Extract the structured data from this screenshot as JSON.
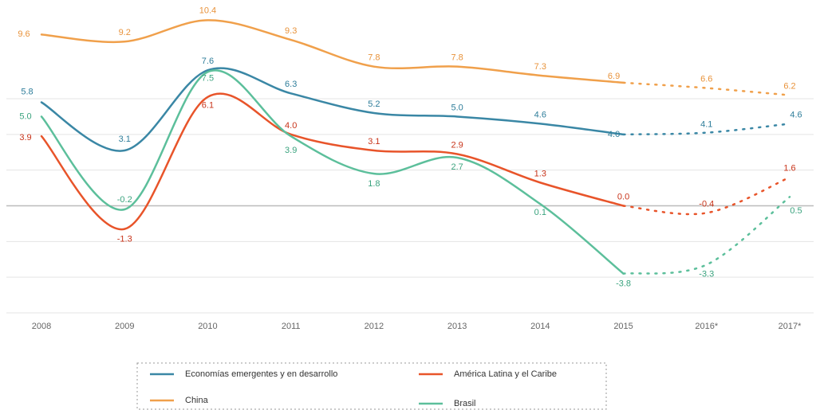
{
  "chart_data": {
    "type": "line",
    "categories": [
      "2008",
      "2009",
      "2010",
      "2011",
      "2012",
      "2013",
      "2014",
      "2015",
      "2016*",
      "2017*"
    ],
    "series": [
      {
        "name": "China",
        "color": "#f0a04b",
        "label_color": "#e8923a",
        "values": [
          9.6,
          9.2,
          10.4,
          9.3,
          7.8,
          7.8,
          7.3,
          6.9,
          6.6,
          6.2
        ]
      },
      {
        "name": "Economías emergentes y en desarrollo",
        "color": "#3a87a5",
        "label_color": "#2e7d9a",
        "values": [
          5.8,
          3.1,
          7.6,
          6.3,
          5.2,
          5.0,
          4.6,
          4.0,
          4.1,
          4.6
        ]
      },
      {
        "name": "América Latina y el Caribe",
        "color": "#e8542a",
        "label_color": "#c8341a",
        "values": [
          3.9,
          -1.3,
          6.1,
          4.0,
          3.1,
          2.9,
          1.3,
          0.0,
          -0.4,
          1.6
        ]
      },
      {
        "name": "Brasil",
        "color": "#5cbf9b",
        "label_color": "#3aa37e",
        "values": [
          5.0,
          -0.2,
          7.5,
          3.9,
          1.8,
          2.7,
          0.1,
          -3.8,
          -3.3,
          0.5
        ]
      }
    ],
    "value_labels": [
      [
        "9.6",
        "9.2",
        "10.4",
        "9.3",
        "7.8",
        "7.8",
        "7.3",
        "6.9",
        "6.6",
        "6.2"
      ],
      [
        "5.8",
        "3.1",
        "7.6",
        "6.3",
        "5.2",
        "5.0",
        "4.6",
        "4.0",
        "4.1",
        "4.6"
      ],
      [
        "3.9",
        "-1.3",
        "6.1",
        "4.0",
        "3.1",
        "2.9",
        "1.3",
        "0.0",
        "-0.4",
        "1.6"
      ],
      [
        "5.0",
        "-0.2",
        "7.5",
        "3.9",
        "1.8",
        "2.7",
        "0.1",
        "-3.8",
        "-3.3",
        "0.5"
      ]
    ],
    "ylim": [
      -6,
      11.5
    ],
    "yticks": [
      -6,
      -4,
      -2,
      0,
      2,
      4,
      6
    ],
    "grid": true,
    "forecast_from_index": 7
  }
}
